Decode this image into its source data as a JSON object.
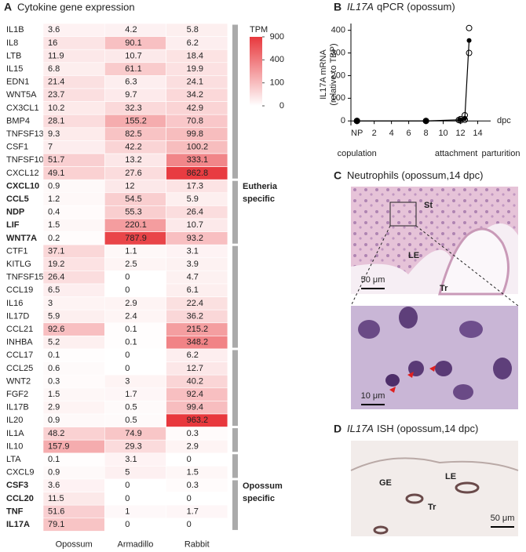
{
  "chart_data": [
    {
      "type": "heatmap",
      "panel_label": "A",
      "title": "Cytokine gene expression",
      "rows": [
        "IL1B",
        "IL8",
        "LTB",
        "IL15",
        "EDN1",
        "WNT5A",
        "CX3CL1",
        "BMP4",
        "TNFSF13",
        "CSF1",
        "TNFSF10",
        "CXCL12",
        "CXCL10",
        "CCL5",
        "NDP",
        "LIF",
        "WNT7A",
        "CTF1",
        "KITLG",
        "TNFSF15",
        "CCL19",
        "IL16",
        "IL17D",
        "CCL21",
        "INHBA",
        "CCL17",
        "CCL25",
        "WNT2",
        "FGF2",
        "IL17B",
        "IL20",
        "IL1A",
        "IL10",
        "LTA",
        "CXCL9",
        "CSF3",
        "CCL20",
        "TNF",
        "IL17A"
      ],
      "columns": [
        "Opossum",
        "Armadillo",
        "Rabbit"
      ],
      "values": [
        [
          3.6,
          4.2,
          5.8
        ],
        [
          16,
          90.1,
          6.2
        ],
        [
          11.9,
          10.7,
          18.4
        ],
        [
          6.8,
          61.1,
          19.9
        ],
        [
          21.4,
          6.3,
          24.1
        ],
        [
          23.7,
          9.7,
          34.2
        ],
        [
          10.2,
          32.3,
          42.9
        ],
        [
          28.1,
          155.2,
          70.8
        ],
        [
          9.3,
          82.5,
          99.8
        ],
        [
          7,
          42.2,
          100.2
        ],
        [
          51.7,
          13.2,
          333.1
        ],
        [
          49.1,
          27.6,
          862.8
        ],
        [
          0.9,
          12,
          17.3
        ],
        [
          1.2,
          54.5,
          5.9
        ],
        [
          0.4,
          55.3,
          26.4
        ],
        [
          1.5,
          220.1,
          10.7
        ],
        [
          0.2,
          787.9,
          93.2
        ],
        [
          37.1,
          1.1,
          3.1
        ],
        [
          19.2,
          2.5,
          3.9
        ],
        [
          26.4,
          0,
          4.7
        ],
        [
          6.5,
          0,
          6.1
        ],
        [
          3,
          2.9,
          22.4
        ],
        [
          5.9,
          2.4,
          36.2
        ],
        [
          92.6,
          0.1,
          215.2
        ],
        [
          5.2,
          0.1,
          348.2
        ],
        [
          0.1,
          0,
          6.2
        ],
        [
          0.6,
          0,
          12.7
        ],
        [
          0.3,
          3,
          40.2
        ],
        [
          1.5,
          1.7,
          92.4
        ],
        [
          2.9,
          0.5,
          99.4
        ],
        [
          0.9,
          0.5,
          963.2
        ],
        [
          48.2,
          74.9,
          0.3
        ],
        [
          157.9,
          29.3,
          2.9
        ],
        [
          0.1,
          3.1,
          0
        ],
        [
          0.9,
          5,
          1.5
        ],
        [
          3.6,
          0,
          0.3
        ],
        [
          11.5,
          0,
          0
        ],
        [
          51.6,
          1,
          1.7
        ],
        [
          79.1,
          0,
          0
        ]
      ],
      "bold_rows": [
        12,
        13,
        14,
        15,
        16,
        35,
        36,
        37,
        38
      ],
      "groups": [
        {
          "rows": [
            0,
            11
          ]
        },
        {
          "rows": [
            12,
            16
          ],
          "label": [
            "Eutheria",
            "specific"
          ]
        },
        {
          "rows": [
            17,
            24
          ]
        },
        {
          "rows": [
            25,
            30
          ]
        },
        {
          "rows": [
            31,
            32
          ]
        },
        {
          "rows": [
            33,
            34
          ]
        },
        {
          "rows": [
            35,
            38
          ],
          "label": [
            "Opossum",
            "specific"
          ]
        }
      ],
      "group_color": "#aaaaaa",
      "colorbar": {
        "title": "TPM",
        "scale": "sqrt",
        "clim": [
          0,
          900
        ],
        "ticks": [
          0,
          100,
          400,
          900
        ],
        "colors": [
          "#ffffff",
          "#e8383d"
        ]
      }
    },
    {
      "type": "scatter",
      "panel_label": "B",
      "title_italic": "IL17A",
      "title": "qPCR (opossum)",
      "ylabel": [
        "IL17A mRNA",
        "(relative to TBP)"
      ],
      "xlabel": "dpc",
      "xlim": [
        -0.7,
        15.5
      ],
      "ylim": [
        -20,
        430
      ],
      "xticks": [
        {
          "value": 0,
          "label": "NP"
        },
        2,
        4,
        6,
        8,
        10,
        12,
        14
      ],
      "yticks": [
        0,
        100,
        200,
        300,
        400
      ],
      "series": [
        {
          "color": "#000000",
          "marker": "open",
          "x": [
            0,
            0,
            0,
            8,
            8,
            11.8,
            12,
            12,
            12.5,
            12.5,
            13,
            13
          ],
          "values": [
            0,
            0,
            0,
            0,
            0,
            4,
            2,
            8,
            25,
            5,
            410,
            300
          ]
        },
        {
          "color": "#000000",
          "marker": "filled",
          "line": true,
          "x": [
            0,
            8,
            12,
            12.5,
            13
          ],
          "values": [
            0,
            0,
            5,
            12,
            355
          ]
        }
      ],
      "annotations": [
        {
          "text": "copulation",
          "x": 0
        },
        {
          "text": "attachment",
          "x": 11.5
        },
        {
          "text": "parturition",
          "x": 17
        }
      ]
    }
  ],
  "panels": [
    {
      "label": "C",
      "title": "Neutrophils (opossum,14 dpc)",
      "annotations": [
        "St",
        "LE",
        "Tr"
      ],
      "scale_bars": [
        "50 μm",
        "10 μm"
      ]
    },
    {
      "label": "D",
      "title_italic": "IL17A",
      "title": "ISH (opossum,14 dpc)",
      "annotations": [
        "GE",
        "LE",
        "Tr"
      ],
      "scale_bars": [
        "50 μm"
      ]
    }
  ]
}
